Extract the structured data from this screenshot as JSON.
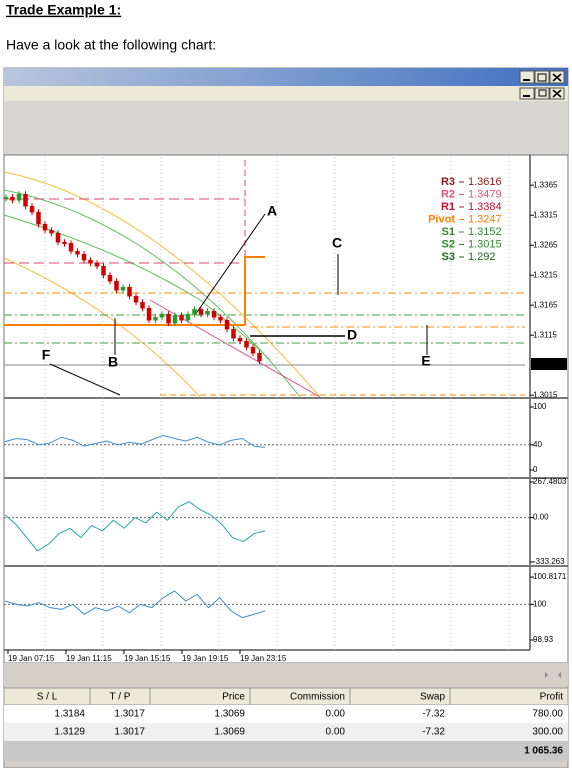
{
  "heading": "Trade Example 1:",
  "intro": "Have a look at the following chart:",
  "chart_data": [
    {
      "type": "candlestick",
      "close": [
        1.3345,
        1.334,
        1.335,
        1.333,
        1.332,
        1.33,
        1.329,
        1.3285,
        1.327,
        1.3268,
        1.3255,
        1.325,
        1.324,
        1.3235,
        1.323,
        1.3215,
        1.3205,
        1.319,
        1.3195,
        1.318,
        1.317,
        1.316,
        1.314,
        1.3145,
        1.315,
        1.3135,
        1.3148,
        1.314,
        1.315,
        1.3158,
        1.315,
        1.3155,
        1.3145,
        1.314,
        1.3125,
        1.311,
        1.3105,
        1.3095,
        1.3085,
        1.3072
      ],
      "ylim": [
        1.3012,
        1.3412
      ],
      "yticks": [
        1.3365,
        1.3315,
        1.3265,
        1.3215,
        1.3165,
        1.3115,
        1.3015
      ],
      "current_price": 1.3067,
      "pivots": [
        {
          "name": "R3",
          "value": 1.3616,
          "color": "#8b1a1a"
        },
        {
          "name": "R2",
          "value": 1.3479,
          "color": "#e0507a"
        },
        {
          "name": "R1",
          "value": 1.3384,
          "color": "#c8102e"
        },
        {
          "name": "Pivot",
          "value": 1.3247,
          "color": "#ff7f00"
        },
        {
          "name": "S1",
          "value": 1.3152,
          "color": "#2e8b2e"
        },
        {
          "name": "S2",
          "value": 1.3015,
          "color": "#2e8b2e"
        },
        {
          "name": "S3",
          "value": 1.292,
          "color": "#1a6b1a"
        }
      ],
      "annotations": [
        "A",
        "B",
        "C",
        "D",
        "E",
        "F"
      ]
    },
    {
      "type": "line",
      "color": "#3a8fd0",
      "values": [
        45,
        50,
        48,
        40,
        43,
        52,
        47,
        38,
        42,
        46,
        40,
        44,
        41,
        48,
        55,
        50,
        46,
        52,
        44,
        40,
        47,
        50,
        38,
        36
      ],
      "ylim": [
        -11,
        111
      ],
      "yticks": [
        100,
        40,
        0
      ]
    },
    {
      "type": "line",
      "color": "#20a8a8",
      "values": [
        20,
        -50,
        -150,
        -250,
        -200,
        -120,
        -80,
        -150,
        -60,
        -100,
        -20,
        -80,
        0,
        -40,
        40,
        -20,
        80,
        120,
        60,
        20,
        -50,
        -150,
        -180,
        -120,
        -100
      ],
      "ylim": [
        -356,
        282
      ],
      "yticks": [
        267.4803,
        {
          "value": 0,
          "label": "0.00"
        },
        -333.263
      ]
    },
    {
      "type": "line",
      "color": "#3a8fd0",
      "values": [
        100.1,
        100.0,
        99.95,
        100.05,
        99.9,
        99.85,
        100.0,
        99.7,
        99.9,
        99.8,
        99.95,
        99.75,
        100.0,
        99.9,
        100.2,
        100.4,
        100.1,
        100.3,
        99.9,
        100.2,
        99.8,
        99.6,
        99.7,
        99.8
      ],
      "ylim": [
        98.63,
        101.09
      ],
      "yticks": [
        100.8171,
        100,
        98.93
      ],
      "x_labels": [
        "19 Jan 07:15",
        "19 Jan 11:15",
        "19 Jan 15:15",
        "19 Jan 19:15",
        "19 Jan 23:15"
      ]
    }
  ],
  "table": {
    "columns": [
      "S / L",
      "T / P",
      "Price",
      "Commission",
      "Swap",
      "Profit"
    ],
    "rows": [
      [
        "1.3184",
        "1.3017",
        "1.3069",
        "0.00",
        "-7.32",
        "780.00"
      ],
      [
        "1.3129",
        "1.3017",
        "1.3069",
        "0.00",
        "-7.32",
        "300.00"
      ]
    ],
    "total": "1 065.36"
  }
}
